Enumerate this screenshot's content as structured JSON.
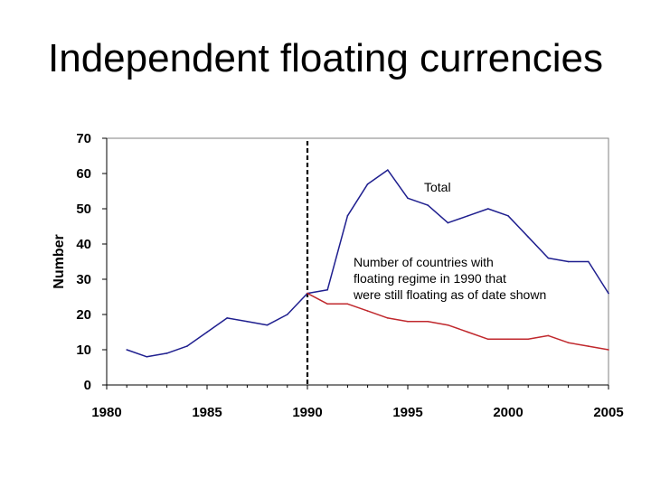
{
  "slide": {
    "title": "Independent floating currencies"
  },
  "chart_data": {
    "type": "line",
    "title": "",
    "xlabel": "",
    "ylabel": "Number",
    "xlim": [
      1980,
      2005
    ],
    "ylim": [
      0,
      70
    ],
    "x_ticks": [
      1980,
      1985,
      1990,
      1995,
      2000,
      2005
    ],
    "y_ticks": [
      0,
      10,
      20,
      30,
      40,
      50,
      60,
      70
    ],
    "grid": false,
    "reference_line": {
      "x": 1990,
      "style": "dashed",
      "color": "#000000"
    },
    "series": [
      {
        "name": "Total",
        "color": "#1f1f8f",
        "x": [
          1981,
          1982,
          1983,
          1984,
          1985,
          1986,
          1987,
          1988,
          1989,
          1990,
          1991,
          1992,
          1993,
          1994,
          1995,
          1996,
          1997,
          1998,
          1999,
          2000,
          2001,
          2002,
          2003,
          2004,
          2005
        ],
        "values": [
          10,
          8,
          9,
          11,
          15,
          19,
          18,
          17,
          20,
          26,
          27,
          48,
          57,
          61,
          53,
          51,
          46,
          48,
          50,
          48,
          42,
          36,
          35,
          35,
          26
        ]
      },
      {
        "name": "Number of countries with floating regime in 1990 that were still floating as of date shown",
        "color": "#c0282d",
        "x": [
          1990,
          1991,
          1992,
          1993,
          1994,
          1995,
          1996,
          1997,
          1998,
          1999,
          2000,
          2001,
          2002,
          2003,
          2004,
          2005
        ],
        "values": [
          26,
          23,
          23,
          21,
          19,
          18,
          18,
          17,
          15,
          13,
          13,
          13,
          14,
          12,
          11,
          10
        ]
      }
    ],
    "annotations": [
      {
        "text": "Total",
        "series": 0
      },
      {
        "lines": [
          "Number of countries with",
          "floating regime in 1990 that",
          "were still floating as of date shown"
        ],
        "series": 1
      }
    ]
  }
}
